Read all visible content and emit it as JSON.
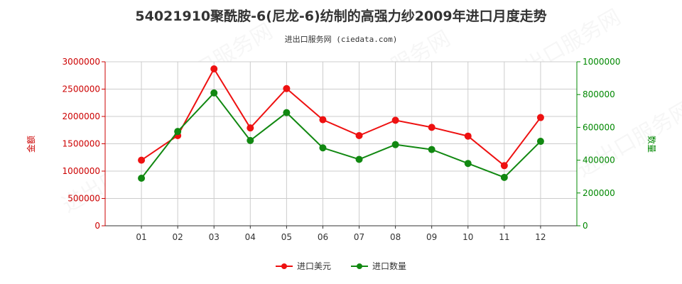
{
  "title": "54021910聚酰胺-6(尼龙-6)纺制的高强力纱2009年进口月度走势",
  "subtitle": "进出口服务网 (ciedata.com)",
  "watermark": "进出口服务网",
  "colors": {
    "series1": "#ee1111",
    "series2": "#118811",
    "grid": "#cccccc",
    "left_axis": "#cc0000",
    "right_axis": "#008800"
  },
  "chart_data": {
    "type": "line",
    "categories": [
      "01",
      "02",
      "03",
      "04",
      "05",
      "06",
      "07",
      "08",
      "09",
      "10",
      "11",
      "12"
    ],
    "series": [
      {
        "name": "进口美元",
        "axis": "left",
        "values": [
          1200000,
          1650000,
          2870000,
          1790000,
          2510000,
          1940000,
          1650000,
          1930000,
          1800000,
          1640000,
          1100000,
          1980000
        ]
      },
      {
        "name": "进口数量",
        "axis": "right",
        "values": [
          290000,
          575000,
          810000,
          520000,
          690000,
          475000,
          405000,
          495000,
          465000,
          380000,
          295000,
          515000
        ]
      }
    ],
    "ylabel_left": "金额",
    "ylabel_right": "数量",
    "ylim_left": [
      0,
      3000000
    ],
    "ylim_right": [
      0,
      1000000
    ],
    "yticks_left": [
      "0",
      "500000",
      "1000000",
      "1500000",
      "2000000",
      "2500000",
      "3000000"
    ],
    "yticks_right": [
      "0",
      "200000",
      "400000",
      "600000",
      "800000",
      "1000000"
    ],
    "grid": true,
    "legend_position": "bottom"
  }
}
